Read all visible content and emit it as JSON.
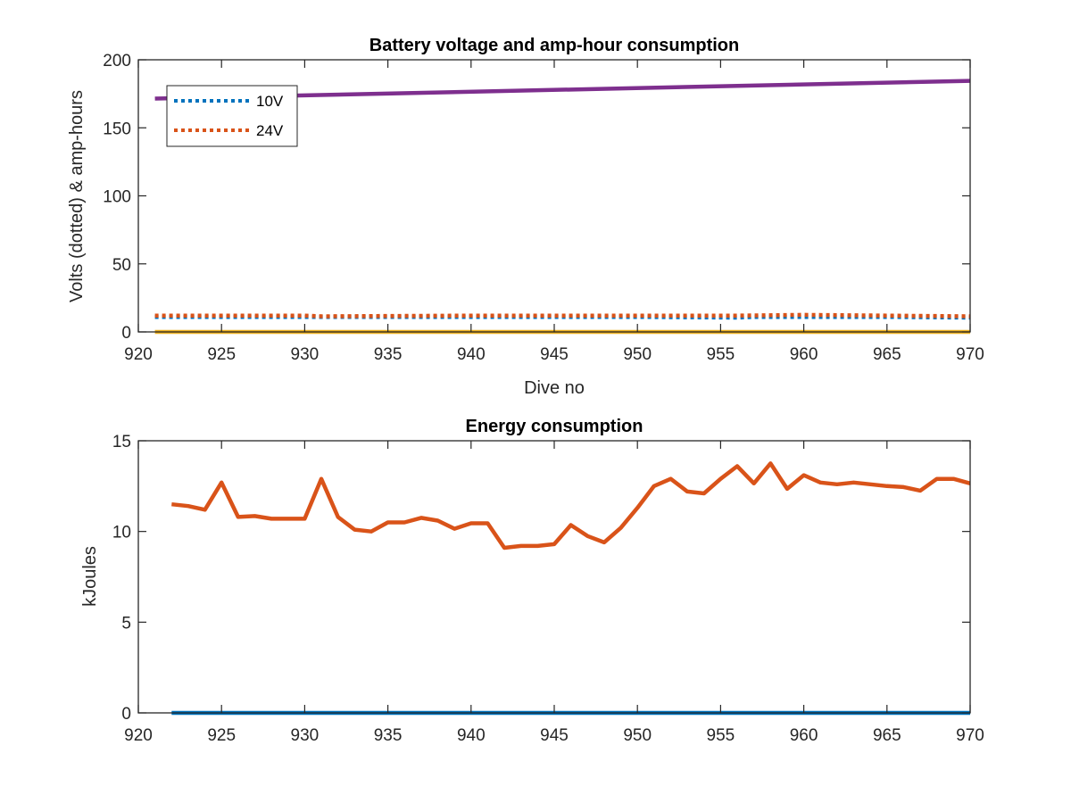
{
  "chart_data": [
    {
      "type": "line",
      "title": "Battery voltage and amp-hour consumption",
      "xlabel": "Dive no",
      "ylabel": "Volts (dotted) & amp-hours",
      "xlim": [
        920,
        970
      ],
      "ylim": [
        0,
        200
      ],
      "xticks": [
        920,
        925,
        930,
        935,
        940,
        945,
        950,
        955,
        960,
        965,
        970
      ],
      "yticks": [
        0,
        50,
        100,
        150,
        200
      ],
      "grid": false,
      "legend_position": "top-left",
      "series": [
        {
          "name": "10V",
          "color": "#0072bd",
          "style": "dotted",
          "legend": true,
          "x": [
            921,
            930,
            940,
            950,
            956,
            957,
            960,
            965,
            970
          ],
          "y": [
            11,
            11,
            11,
            11,
            10.5,
            11,
            11,
            11,
            10.5
          ]
        },
        {
          "name": "24V",
          "color": "#d95319",
          "style": "dotted",
          "legend": true,
          "x": [
            921,
            930,
            931,
            940,
            950,
            955,
            956,
            960,
            965,
            970
          ],
          "y": [
            12,
            12,
            11.5,
            12,
            12,
            12,
            12,
            12.5,
            12,
            11.5
          ]
        },
        {
          "color": "#7e2f8e",
          "style": "solid",
          "legend": false,
          "x": [
            921,
            970
          ],
          "y": [
            171.5,
            184.5
          ]
        },
        {
          "color": "#edb120",
          "style": "solid",
          "legend": false,
          "x": [
            921,
            970
          ],
          "y": [
            0,
            0
          ]
        }
      ]
    },
    {
      "type": "line",
      "title": "Energy consumption",
      "xlabel": "",
      "ylabel": "kJoules",
      "xlim": [
        920,
        970
      ],
      "ylim": [
        0,
        15
      ],
      "xticks": [
        920,
        925,
        930,
        935,
        940,
        945,
        950,
        955,
        960,
        965,
        970
      ],
      "yticks": [
        0,
        5,
        10,
        15
      ],
      "grid": false,
      "series": [
        {
          "color": "#0072bd",
          "style": "solid",
          "x": [
            922,
            970
          ],
          "y": [
            0,
            0
          ]
        },
        {
          "color": "#d95319",
          "style": "solid",
          "x": [
            922,
            923,
            924,
            925,
            926,
            927,
            928,
            929,
            930,
            931,
            932,
            933,
            934,
            935,
            936,
            937,
            938,
            939,
            940,
            941,
            942,
            943,
            944,
            945,
            946,
            947,
            948,
            949,
            950,
            951,
            952,
            953,
            954,
            955,
            956,
            957,
            958,
            959,
            960,
            961,
            962,
            963,
            964,
            965,
            966,
            967,
            968,
            969,
            970
          ],
          "y": [
            11.5,
            11.4,
            11.2,
            12.7,
            10.8,
            10.85,
            10.7,
            10.7,
            10.7,
            12.9,
            10.8,
            10.1,
            10.0,
            10.5,
            10.5,
            10.75,
            10.6,
            10.15,
            10.45,
            10.45,
            9.1,
            9.2,
            9.2,
            9.3,
            10.35,
            9.75,
            9.4,
            10.2,
            11.3,
            12.5,
            12.9,
            12.2,
            12.1,
            12.9,
            13.6,
            12.65,
            13.75,
            12.35,
            13.1,
            12.7,
            12.6,
            12.7,
            12.6,
            12.5,
            12.45,
            12.25,
            12.9,
            12.9,
            12.65
          ]
        }
      ]
    }
  ]
}
